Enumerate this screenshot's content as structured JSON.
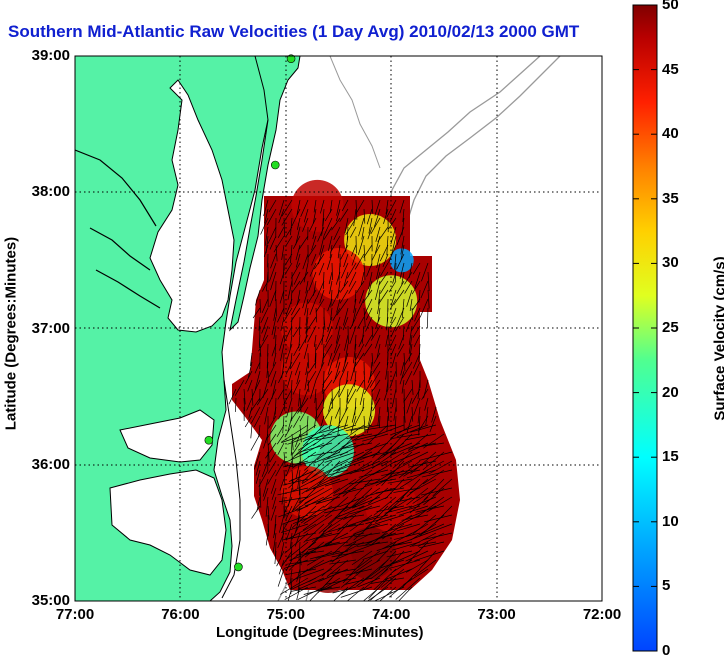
{
  "title": "Southern Mid-Atlantic Raw Velocities (1 Day Avg) 2010/02/13 2000 GMT",
  "xaxis_title": "Longitude (Degrees:Minutes)",
  "yaxis_title": "Latitude (Degrees:Minutes)",
  "colorbar_title": "Surface Velocity (cm/s)",
  "x_ticks": [
    "77:00",
    "76:00",
    "75:00",
    "74:00",
    "73:00",
    "72:00"
  ],
  "y_ticks": [
    "39:00",
    "38:00",
    "37:00",
    "36:00",
    "35:00"
  ],
  "colorbar_ticks": [
    "50",
    "45",
    "40",
    "35",
    "30",
    "25",
    "20",
    "15",
    "10",
    "5",
    "0"
  ],
  "colors": {
    "land": "#55f2a6",
    "title": "#1020d0",
    "arrows": "#000000",
    "coastline": "#000000",
    "bathymetry": "#9a9a9a",
    "radar_site": "#22dd22"
  },
  "chart_data": {
    "type": "heatmap",
    "title": "Southern Mid-Atlantic Raw Velocities (1 Day Avg) 2010/02/13 2000 GMT",
    "xlabel": "Longitude (Degrees:Minutes)",
    "ylabel": "Latitude (Degrees:Minutes)",
    "xlim": [
      -77,
      -72
    ],
    "ylim": [
      35,
      39
    ],
    "grid": true,
    "colorbar": {
      "label": "Surface Velocity (cm/s)",
      "range": [
        0,
        50
      ],
      "colormap": "jet"
    },
    "arrow_direction": "toward south-southwest",
    "radar_sites": [
      {
        "lon": -74.95,
        "lat": 38.98
      },
      {
        "lon": -75.1,
        "lat": 38.2
      },
      {
        "lon": -75.73,
        "lat": 36.18
      },
      {
        "lon": -75.45,
        "lat": 35.25
      }
    ],
    "velocity_field": [
      {
        "lon": -74.7,
        "lat": 37.9,
        "speed": 47
      },
      {
        "lon": -74.2,
        "lat": 37.65,
        "speed": 30
      },
      {
        "lon": -73.9,
        "lat": 37.5,
        "speed": 8
      },
      {
        "lon": -74.5,
        "lat": 37.4,
        "speed": 44
      },
      {
        "lon": -74.0,
        "lat": 37.2,
        "speed": 27
      },
      {
        "lon": -74.8,
        "lat": 37.0,
        "speed": 46
      },
      {
        "lon": -74.8,
        "lat": 36.7,
        "speed": 46
      },
      {
        "lon": -74.4,
        "lat": 36.6,
        "speed": 44
      },
      {
        "lon": -74.4,
        "lat": 36.4,
        "speed": 28
      },
      {
        "lon": -74.9,
        "lat": 36.2,
        "speed": 24
      },
      {
        "lon": -74.6,
        "lat": 36.1,
        "speed": 20
      },
      {
        "lon": -74.8,
        "lat": 35.8,
        "speed": 45
      },
      {
        "lon": -74.0,
        "lat": 35.7,
        "speed": 47
      },
      {
        "lon": -74.2,
        "lat": 35.35,
        "speed": 50
      },
      {
        "lon": -74.6,
        "lat": 35.25,
        "speed": 49
      }
    ]
  }
}
